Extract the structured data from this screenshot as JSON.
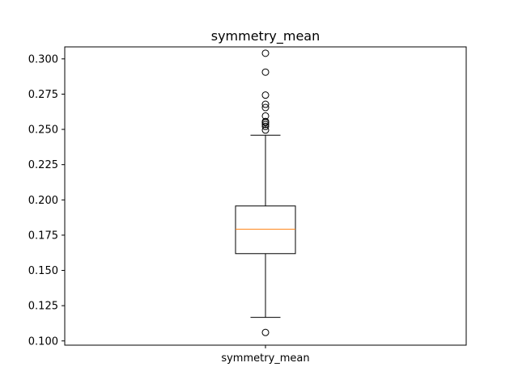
{
  "chart_data": {
    "type": "box",
    "title": "symmetry_mean",
    "xlabel": "",
    "ylabel": "",
    "categories": [
      "symmetry_mean"
    ],
    "ylim": [
      0.097,
      0.3085
    ],
    "yticks": [
      0.1,
      0.125,
      0.15,
      0.175,
      0.2,
      0.225,
      0.25,
      0.275,
      0.3
    ],
    "ytick_labels": [
      "0.100",
      "0.125",
      "0.150",
      "0.175",
      "0.200",
      "0.225",
      "0.250",
      "0.275",
      "0.300"
    ],
    "boxes": [
      {
        "name": "symmetry_mean",
        "whisker_low": 0.1167,
        "q1": 0.1619,
        "median": 0.1792,
        "q3": 0.1957,
        "whisker_high": 0.2459,
        "outliers": [
          0.106,
          0.2495,
          0.2521,
          0.2535,
          0.2548,
          0.2556,
          0.2595,
          0.2655,
          0.2678,
          0.2743,
          0.2906,
          0.304
        ]
      }
    ],
    "colors": {
      "box": "#000000",
      "median": "#ff7f0e",
      "outlier": "#000000"
    },
    "grid": false
  }
}
